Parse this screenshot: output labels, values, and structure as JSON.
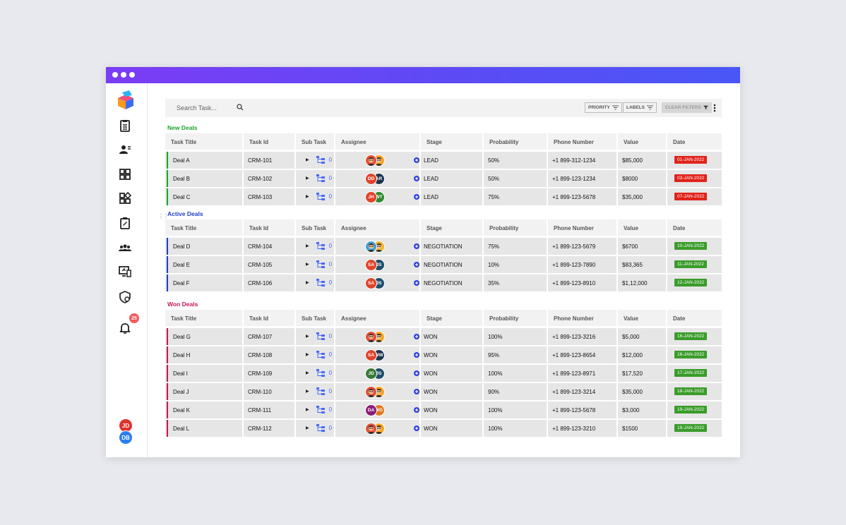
{
  "search": {
    "placeholder": "Search Task..."
  },
  "filters": {
    "priority": "PRIORITY",
    "labels": "LABELS",
    "clear": "CLEAR FILTERS"
  },
  "notifications": {
    "count": "25"
  },
  "sidebar_users": [
    "JD",
    "DB"
  ],
  "columns": [
    "Task Title",
    "Task Id",
    "Sub Task",
    "Assignee",
    "Stage",
    "Probability",
    "Phone Number",
    "Value",
    "Date"
  ],
  "colors": {
    "new": "#1aa82a",
    "active": "#1e3fc8",
    "won": "#c8184e",
    "date_red": "#e0231b",
    "date_green": "#3a9c2a"
  },
  "sections": [
    {
      "title": "New Deals",
      "rows": [
        {
          "title": "Deal A",
          "id": "CRM-101",
          "subtask": "0",
          "assignees": [
            "face",
            "face"
          ],
          "stage": "LEAD",
          "probability": "50%",
          "phone": "+1 899-312-1234",
          "value": "$85,000",
          "date": "01-JAN-2022"
        },
        {
          "title": "Deal B",
          "id": "CRM-102",
          "subtask": "0",
          "assignees": [
            "DD",
            "AR"
          ],
          "stage": "LEAD",
          "probability": "50%",
          "phone": "+1 899-123-1234",
          "value": "$8000",
          "date": "03-JAN-2022"
        },
        {
          "title": "Deal C",
          "id": "CRM-103",
          "subtask": "0",
          "assignees": [
            "JH",
            "WT"
          ],
          "stage": "LEAD",
          "probability": "75%",
          "phone": "+1 899-123-5678",
          "value": "$35,000",
          "date": "07-JAN-2022"
        }
      ]
    },
    {
      "title": "Active Deals",
      "rows": [
        {
          "title": "Deal D",
          "id": "CRM-104",
          "subtask": "0",
          "assignees": [
            "face",
            "face"
          ],
          "stage": "NEGOTIATION",
          "probability": "75%",
          "phone": "+1 899-123-5679",
          "value": "$6700",
          "date": "10-JAN-2022"
        },
        {
          "title": "Deal E",
          "id": "CRM-105",
          "subtask": "0",
          "assignees": [
            "SA",
            "JS"
          ],
          "stage": "NEGOTIATION",
          "probability": "10%",
          "phone": "+1 899-123-7890",
          "value": "$83,365",
          "date": "11-JAN-2022"
        },
        {
          "title": "Deal F",
          "id": "CRM-106",
          "subtask": "0",
          "assignees": [
            "SA",
            "JS"
          ],
          "stage": "NEGOTIATION",
          "probability": "35%",
          "phone": "+1 899-123-8910",
          "value": "$1,12,000",
          "date": "12-JAN-2022"
        }
      ]
    },
    {
      "title": "Won Deals",
      "rows": [
        {
          "title": "Deal G",
          "id": "CRM-107",
          "subtask": "0",
          "assignees": [
            "face",
            "face"
          ],
          "stage": "WON",
          "probability": "100%",
          "phone": "+1 899-123-3216",
          "value": "$5,000",
          "date": "16-JAN-2022"
        },
        {
          "title": "Deal H",
          "id": "CRM-108",
          "subtask": "0",
          "assignees": [
            "SA",
            "WW"
          ],
          "stage": "WON",
          "probability": "95%",
          "phone": "+1 899-123-8654",
          "value": "$12,000",
          "date": "16-JAN-2022"
        },
        {
          "title": "Deal I",
          "id": "CRM-109",
          "subtask": "0",
          "assignees": [
            "JD",
            "JS"
          ],
          "stage": "WON",
          "probability": "100%",
          "phone": "+1 899-123-8971",
          "value": "$17,520",
          "date": "17-JAN-2022"
        },
        {
          "title": "Deal J",
          "id": "CRM-110",
          "subtask": "0",
          "assignees": [
            "face",
            "face"
          ],
          "stage": "WON",
          "probability": "90%",
          "phone": "+1 899-123-3214",
          "value": "$35,000",
          "date": "18-JAN-2022"
        },
        {
          "title": "Deal K",
          "id": "CRM-111",
          "subtask": "0",
          "assignees": [
            "DA",
            "WG"
          ],
          "stage": "WON",
          "probability": "100%",
          "phone": "+1 899-123-5678",
          "value": "$3,000",
          "date": "19-JAN-2022"
        },
        {
          "title": "Deal L",
          "id": "CRM-112",
          "subtask": "0",
          "assignees": [
            "face",
            "face"
          ],
          "stage": "WON",
          "probability": "100%",
          "phone": "+1 899-123-3210",
          "value": "$1500",
          "date": "19-JAN-2022"
        }
      ]
    }
  ]
}
